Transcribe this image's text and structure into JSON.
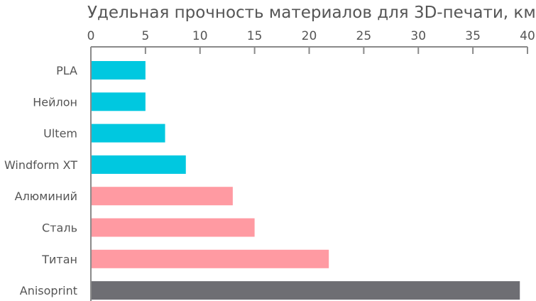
{
  "chart_data": {
    "type": "bar",
    "orientation": "horizontal",
    "title": "Удельная прочность материалов для 3D-печати, км",
    "xlabel": "",
    "ylabel": "",
    "axis_position": "top",
    "xlim": [
      0,
      40
    ],
    "x_ticks": [
      0,
      5,
      10,
      15,
      20,
      25,
      30,
      35,
      40
    ],
    "grid": false,
    "categories": [
      "PLA",
      "Нейлон",
      "Ultem",
      "Windform XT",
      "Алюминий",
      "Сталь",
      "Титан",
      "Anisoprint"
    ],
    "values": [
      5.0,
      5.0,
      6.8,
      8.7,
      13.0,
      15.0,
      21.8,
      39.3
    ],
    "colors": [
      "#00c8e0",
      "#00c8e0",
      "#00c8e0",
      "#00c8e0",
      "#ff9aa2",
      "#ff9aa2",
      "#ff9aa2",
      "#6e6e73"
    ]
  }
}
